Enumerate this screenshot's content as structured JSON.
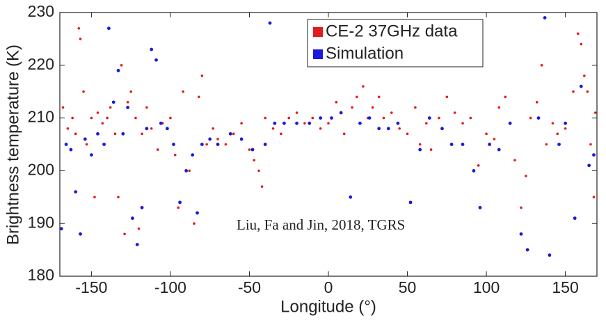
{
  "chart_data": {
    "type": "scatter",
    "x_label": "Longitude (°)",
    "y_label": "Brightness temperature (K)",
    "annotation": "Liu, Fa and Jin, 2018, TGRS",
    "xlim": [
      -170,
      170
    ],
    "xticks": [
      -150,
      -100,
      -50,
      0,
      50,
      100,
      150
    ],
    "ylim": [
      180,
      230
    ],
    "yticks": [
      180,
      190,
      200,
      210,
      220,
      230
    ],
    "legend": "upper right",
    "series": [
      {
        "name": "CE-2 37GHz data",
        "color": "#e41a1c",
        "x": [
          -168,
          -165,
          -162,
          -160,
          -158,
          -157,
          -155,
          -153,
          -150,
          -148,
          -146,
          -143,
          -140,
          -138,
          -135,
          -133,
          -131,
          -129,
          -127,
          -125,
          -122,
          -120,
          -118,
          -115,
          -112,
          -108,
          -105,
          -100,
          -97,
          -95,
          -92,
          -88,
          -85,
          -82,
          -80,
          -77,
          -73,
          -70,
          -65,
          -60,
          -55,
          -50,
          -47,
          -44,
          -42,
          -40,
          -35,
          -30,
          -25,
          -20,
          -15,
          -10,
          -5,
          0,
          5,
          10,
          15,
          18,
          22,
          25,
          28,
          32,
          35,
          40,
          45,
          50,
          55,
          58,
          62,
          65,
          70,
          75,
          80,
          85,
          90,
          95,
          100,
          105,
          108,
          112,
          118,
          122,
          125,
          128,
          132,
          135,
          138,
          142,
          145,
          150,
          155,
          158,
          160,
          162,
          164,
          166,
          168,
          169
        ],
        "values": [
          212,
          208,
          210,
          207,
          227,
          225,
          215,
          205,
          210,
          195,
          211,
          209,
          210,
          212,
          207,
          195,
          220,
          188,
          213,
          215,
          210,
          189,
          207,
          212,
          208,
          204,
          209,
          210,
          203,
          193,
          215,
          200,
          190,
          214,
          218,
          205,
          208,
          206,
          205,
          207,
          209,
          204,
          202,
          200,
          197,
          210,
          208,
          207,
          210,
          211,
          209,
          210,
          208,
          209,
          213,
          207,
          212,
          214,
          216,
          210,
          212,
          214,
          210,
          211,
          208,
          207,
          212,
          205,
          209,
          204,
          210,
          214,
          211,
          209,
          210,
          201,
          207,
          206,
          212,
          214,
          202,
          193,
          199,
          210,
          213,
          220,
          205,
          209,
          207,
          208,
          215,
          226,
          224,
          218,
          215,
          205,
          195,
          211
        ]
      },
      {
        "name": "Simulation",
        "color": "#1a1adc",
        "x": [
          -169,
          -166,
          -163,
          -160,
          -157,
          -154,
          -150,
          -146,
          -142,
          -139,
          -136,
          -133,
          -130,
          -127,
          -124,
          -121,
          -118,
          -115,
          -112,
          -109,
          -106,
          -102,
          -98,
          -94,
          -90,
          -86,
          -83,
          -80,
          -75,
          -70,
          -62,
          -55,
          -48,
          -40,
          -37,
          -34,
          -28,
          -20,
          -12,
          -5,
          2,
          8,
          14,
          20,
          26,
          32,
          38,
          44,
          52,
          58,
          64,
          72,
          78,
          85,
          92,
          96,
          102,
          108,
          115,
          122,
          126,
          133,
          137,
          140,
          146,
          150,
          156,
          160,
          165,
          168
        ],
        "values": [
          189,
          205,
          204,
          196,
          188,
          206,
          203,
          207,
          205,
          227,
          213,
          219,
          207,
          212,
          191,
          186,
          193,
          208,
          223,
          221,
          209,
          208,
          205,
          194,
          200,
          203,
          192,
          205,
          206,
          205,
          207,
          206,
          204,
          205,
          228,
          209,
          209,
          209,
          209,
          210,
          210,
          211,
          195,
          209,
          210,
          208,
          208,
          209,
          194,
          204,
          210,
          208,
          205,
          205,
          200,
          193,
          205,
          204,
          209,
          188,
          185,
          210,
          229,
          184,
          205,
          209,
          191,
          216,
          201,
          203
        ]
      }
    ]
  }
}
